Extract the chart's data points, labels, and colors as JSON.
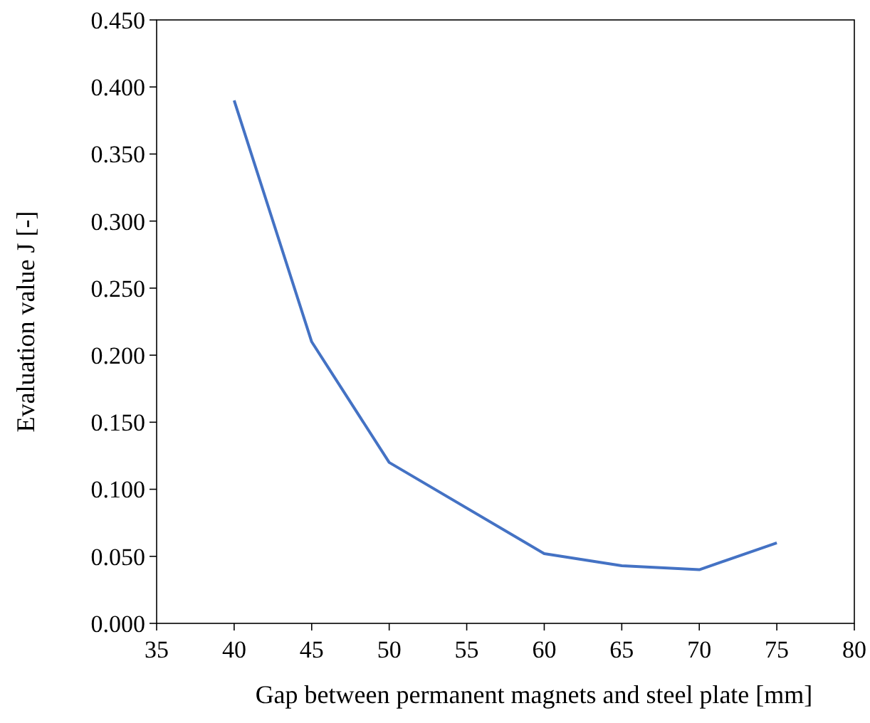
{
  "chart_data": {
    "type": "line",
    "xlabel": "Gap between permanent magnets and steel plate [mm]",
    "ylabel": "Evaluation value J [-]",
    "x": [
      40,
      45,
      50,
      60,
      65,
      70,
      75
    ],
    "series": [
      {
        "color": "#4472c4",
        "values": [
          0.39,
          0.21,
          0.12,
          0.052,
          0.043,
          0.04,
          0.06
        ]
      }
    ],
    "xlim": [
      35,
      80
    ],
    "xticks": [
      35,
      40,
      45,
      50,
      55,
      60,
      65,
      70,
      75,
      80
    ],
    "ylim": [
      0,
      0.45
    ],
    "yticks": [
      {
        "value": 0,
        "label": "0.000"
      },
      {
        "value": 0.05,
        "label": "0.050"
      },
      {
        "value": 0.1,
        "label": "0.100"
      },
      {
        "value": 0.15,
        "label": "0.150"
      },
      {
        "value": 0.2,
        "label": "0.200"
      },
      {
        "value": 0.25,
        "label": "0.250"
      },
      {
        "value": 0.3,
        "label": "0.300"
      },
      {
        "value": 0.35,
        "label": "0.350"
      },
      {
        "value": 0.4,
        "label": "0.400"
      },
      {
        "value": 0.45,
        "label": "0.450"
      }
    ],
    "grid": false,
    "marker": "none",
    "line_style": "solid"
  }
}
